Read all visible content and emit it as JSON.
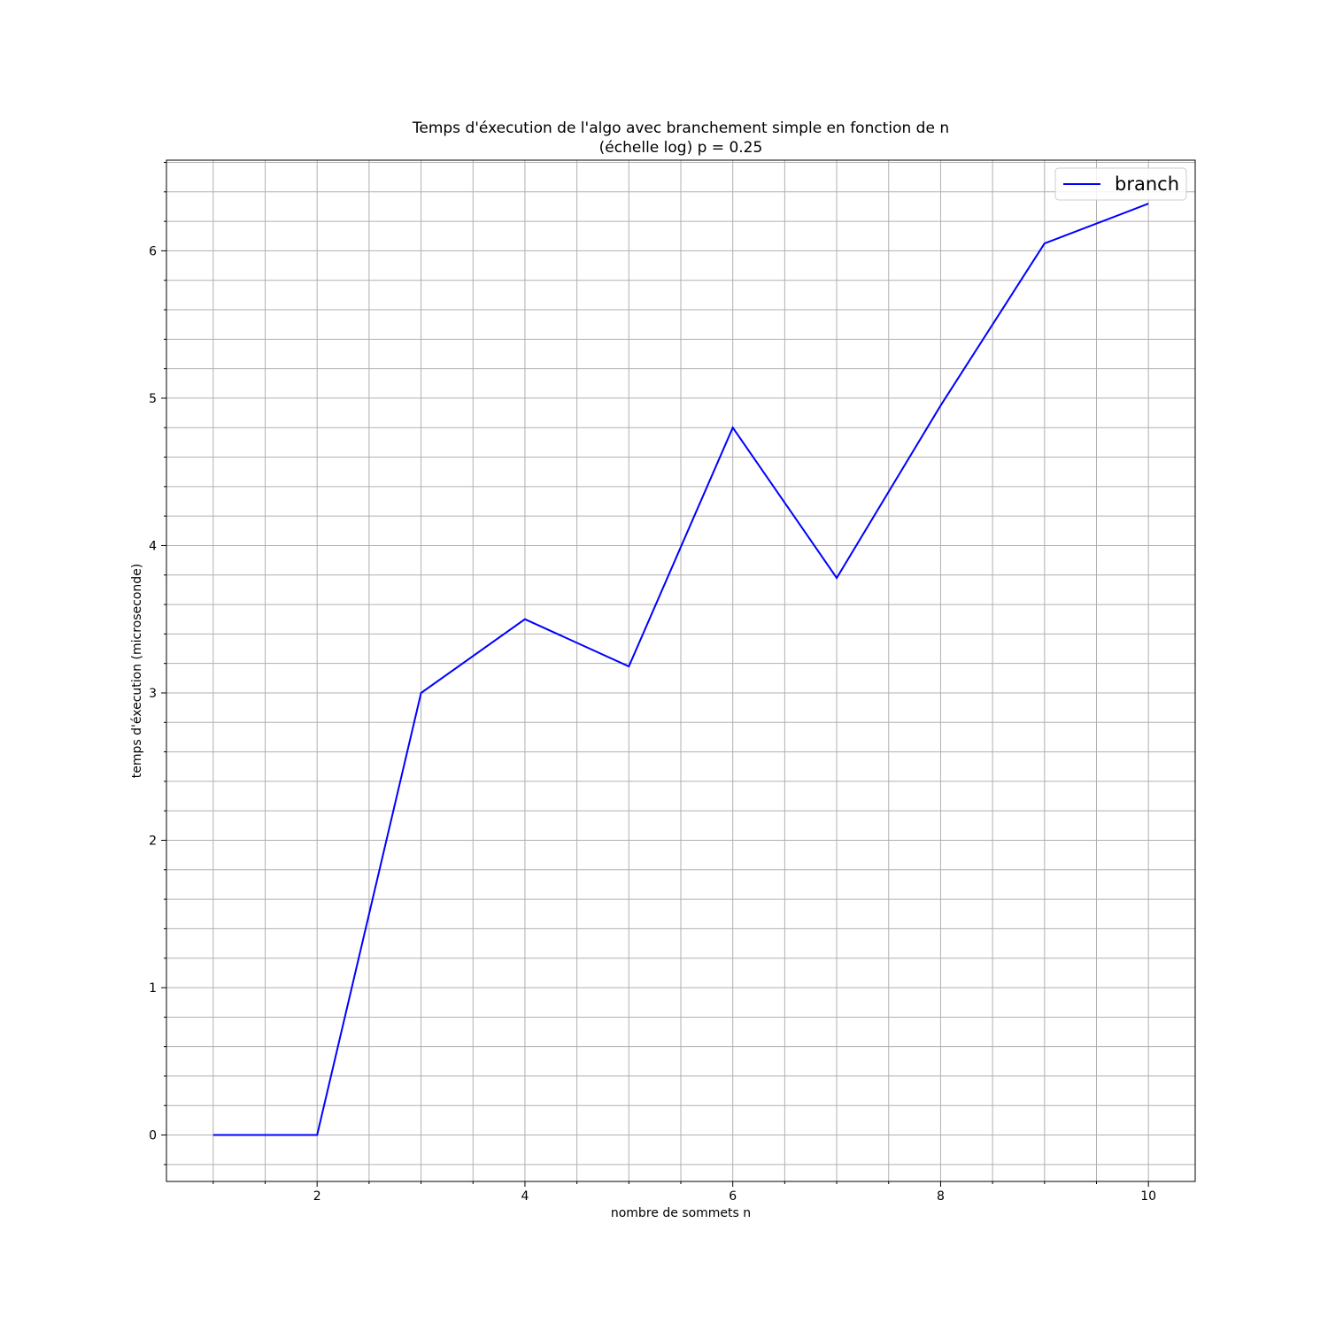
{
  "chart_data": {
    "type": "line",
    "title": [
      "Temps d'éxecution de l'algo avec branchement simple en fonction de n",
      "(échelle log) p = 0.25"
    ],
    "xlabel": "nombre de sommets n",
    "ylabel": "temps d'éxecution (microseconde)",
    "xlim": [
      0.55,
      10.45
    ],
    "ylim": [
      -0.315,
      6.615
    ],
    "x_ticks": [
      2,
      4,
      6,
      8,
      10
    ],
    "y_ticks": [
      0,
      1,
      2,
      3,
      4,
      5,
      6
    ],
    "x_minor_step": 0.5,
    "y_minor_step": 0.2,
    "grid": "major and minor",
    "legend_position": "top-right",
    "colors": {
      "branch": "#0000ff",
      "grid": "#b0b0b0",
      "axes": "#000000"
    },
    "series": [
      {
        "name": "branch",
        "x": [
          1,
          2,
          3,
          4,
          5,
          6,
          7,
          8,
          9,
          10
        ],
        "y": [
          0,
          0,
          3.0,
          3.5,
          3.18,
          4.8,
          3.78,
          4.95,
          6.05,
          6.32
        ]
      }
    ]
  }
}
